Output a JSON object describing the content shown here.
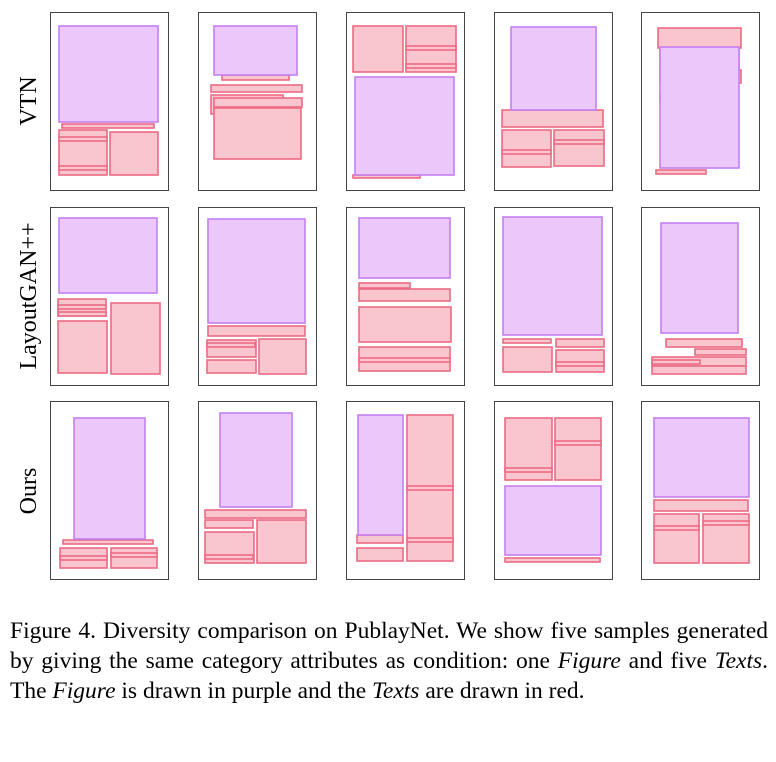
{
  "rows": [
    {
      "label": "VTN",
      "samples": [
        {
          "figures": [
            [
              59,
              26,
              158,
              122
            ]
          ],
          "texts": [
            [
              62,
              124,
              154,
              128
            ],
            [
              59,
              130,
              107,
              175
            ],
            [
              110,
              132,
              158,
              175
            ],
            [
              59,
              137,
              107,
              141
            ],
            [
              59,
              166,
              107,
              170
            ]
          ]
        },
        {
          "figures": [
            [
              214,
              26,
              297,
              75
            ]
          ],
          "texts": [
            [
              222,
              75,
              289,
              80
            ],
            [
              211,
              85,
              302,
              92
            ],
            [
              211,
              95,
              283,
              114
            ],
            [
              214,
              98,
              302,
              107
            ],
            [
              214,
              108,
              301,
              159
            ]
          ]
        },
        {
          "figures": [
            [
              355,
              77,
              454,
              175
            ]
          ],
          "texts": [
            [
              353,
              26,
              403,
              72
            ],
            [
              406,
              26,
              456,
              72
            ],
            [
              406,
              46,
              456,
              50
            ],
            [
              406,
              64,
              456,
              68
            ],
            [
              353,
              175,
              420,
              178
            ]
          ]
        },
        {
          "figures": [
            [
              511,
              27,
              596,
              110
            ]
          ],
          "texts": [
            [
              502,
              110,
              603,
              127
            ],
            [
              502,
              130,
              551,
              167
            ],
            [
              554,
              130,
              604,
              166
            ],
            [
              502,
              150,
              551,
              154
            ],
            [
              554,
              140,
              604,
              144
            ]
          ]
        },
        {
          "figures": [
            [
              660,
              47,
              739,
              168
            ]
          ],
          "texts": [
            [
              658,
              28,
              741,
              48
            ],
            [
              660,
              48,
              739,
              72
            ],
            [
              660,
              70,
              741,
              83
            ],
            [
              660,
              93,
              705,
              101
            ],
            [
              656,
              170,
              706,
              174
            ]
          ]
        }
      ]
    },
    {
      "label": "LayoutGAN++",
      "samples": [
        {
          "figures": [
            [
              59,
              218,
              157,
              293
            ]
          ],
          "texts": [
            [
              58,
              299,
              106,
              316
            ],
            [
              58,
              305,
              106,
              309
            ],
            [
              58,
              321,
              107,
              373
            ],
            [
              111,
              303,
              160,
              374
            ],
            [
              58,
              312,
              106,
              316
            ]
          ]
        },
        {
          "figures": [
            [
              208,
              219,
              305,
              323
            ]
          ],
          "texts": [
            [
              208,
              326,
              305,
              336
            ],
            [
              207,
              340,
              256,
              357
            ],
            [
              207,
              343,
              255,
              347
            ],
            [
              259,
              339,
              306,
              374
            ],
            [
              207,
              360,
              256,
              373
            ]
          ]
        },
        {
          "figures": [
            [
              359,
              218,
              450,
              278
            ]
          ],
          "texts": [
            [
              359,
              283,
              410,
              288
            ],
            [
              359,
              289,
              450,
              301
            ],
            [
              359,
              307,
              451,
              342
            ],
            [
              359,
              347,
              450,
              371
            ],
            [
              359,
              358,
              450,
              362
            ]
          ]
        },
        {
          "figures": [
            [
              503,
              217,
              602,
              335
            ]
          ],
          "texts": [
            [
              503,
              339,
              551,
              343
            ],
            [
              503,
              347,
              552,
              372
            ],
            [
              556,
              339,
              604,
              347
            ],
            [
              556,
              350,
              604,
              372
            ],
            [
              556,
              362,
              604,
              366
            ]
          ]
        },
        {
          "figures": [
            [
              661,
              223,
              738,
              333
            ]
          ],
          "texts": [
            [
              666,
              339,
              742,
              347
            ],
            [
              695,
              349,
              746,
              355
            ],
            [
              652,
              357,
              746,
              366
            ],
            [
              652,
              360,
              700,
              364
            ],
            [
              652,
              366,
              746,
              374
            ]
          ]
        }
      ]
    },
    {
      "label": "Ours",
      "samples": [
        {
          "figures": [
            [
              74,
              418,
              145,
              539
            ]
          ],
          "texts": [
            [
              63,
              540,
              153,
              544
            ],
            [
              60,
              548,
              107,
              568
            ],
            [
              111,
              548,
              157,
              568
            ],
            [
              60,
              556,
              107,
              560
            ],
            [
              111,
              553,
              157,
              557
            ]
          ]
        },
        {
          "figures": [
            [
              220,
              413,
              292,
              507
            ]
          ],
          "texts": [
            [
              205,
              510,
              306,
              518
            ],
            [
              205,
              520,
              253,
              528
            ],
            [
              205,
              532,
              254,
              563
            ],
            [
              205,
              555,
              253,
              559
            ],
            [
              257,
              520,
              306,
              563
            ]
          ]
        },
        {
          "figures": [
            [
              358,
              415,
              403,
              535
            ]
          ],
          "texts": [
            [
              407,
              415,
              453,
              561
            ],
            [
              407,
              486,
              453,
              490
            ],
            [
              407,
              538,
              453,
              542
            ],
            [
              357,
              535,
              403,
              543
            ],
            [
              357,
              548,
              403,
              561
            ]
          ]
        },
        {
          "figures": [
            [
              505,
              486,
              601,
              555
            ]
          ],
          "texts": [
            [
              505,
              418,
              552,
              480
            ],
            [
              505,
              468,
              552,
              472
            ],
            [
              555,
              418,
              601,
              480
            ],
            [
              555,
              441,
              601,
              445
            ],
            [
              505,
              558,
              600,
              562
            ]
          ]
        },
        {
          "figures": [
            [
              654,
              418,
              749,
              497
            ]
          ],
          "texts": [
            [
              654,
              500,
              748,
              511
            ],
            [
              654,
              514,
              699,
              563
            ],
            [
              703,
              514,
              749,
              563
            ],
            [
              654,
              526,
              699,
              530
            ],
            [
              703,
              521,
              749,
              525
            ]
          ]
        }
      ]
    }
  ],
  "caption": {
    "prefix": "Figure 4. Diversity comparison on PublayNet. We show five samples generated by giving the same category attributes as condition: one ",
    "figure_term": "Figure",
    "mid1": " and five ",
    "texts_term": "Texts",
    "mid2": ". The ",
    "figure_term_2": "Figure",
    "mid3": " is drawn in purple and the ",
    "texts_term_2": "Texts",
    "suffix": " are drawn in red."
  },
  "colors": {
    "figure_fill": "#ecc8fa",
    "figure_stroke": "#c57ff0",
    "text_fill": "#f9c6d0",
    "text_stroke": "#ec6b84"
  }
}
